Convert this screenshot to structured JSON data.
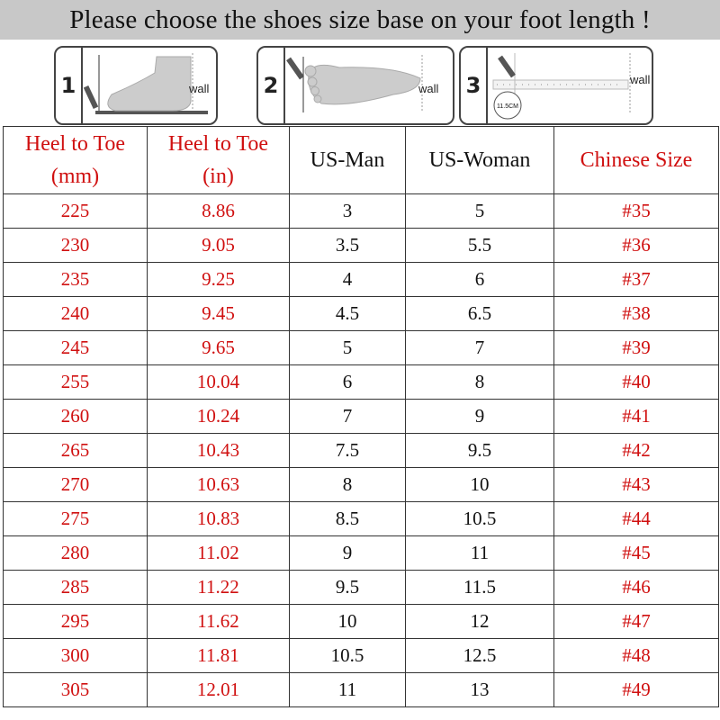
{
  "title": "Please choose the shoes size base on your foot length !",
  "steps": [
    {
      "number": "1",
      "label": "wall"
    },
    {
      "number": "2",
      "label": "wall"
    },
    {
      "number": "3",
      "label": "wall",
      "badge": "11.5CM"
    }
  ],
  "colors": {
    "red_text": "#d01010",
    "title_bar": "#c8c8c8"
  },
  "table": {
    "headers": [
      {
        "line1": "Heel to Toe",
        "line2": "(mm)"
      },
      {
        "line1": "Heel to Toe",
        "line2": "(in)"
      },
      {
        "line1": "US-Man",
        "line2": ""
      },
      {
        "line1": "US-Woman",
        "line2": ""
      },
      {
        "line1": "Chinese Size",
        "line2": ""
      }
    ],
    "rows": [
      [
        "225",
        "8.86",
        "3",
        "5",
        "#35"
      ],
      [
        "230",
        "9.05",
        "3.5",
        "5.5",
        "#36"
      ],
      [
        "235",
        "9.25",
        "4",
        "6",
        "#37"
      ],
      [
        "240",
        "9.45",
        "4.5",
        "6.5",
        "#38"
      ],
      [
        "245",
        "9.65",
        "5",
        "7",
        "#39"
      ],
      [
        "255",
        "10.04",
        "6",
        "8",
        "#40"
      ],
      [
        "260",
        "10.24",
        "7",
        "9",
        "#41"
      ],
      [
        "265",
        "10.43",
        "7.5",
        "9.5",
        "#42"
      ],
      [
        "270",
        "10.63",
        "8",
        "10",
        "#43"
      ],
      [
        "275",
        "10.83",
        "8.5",
        "10.5",
        "#44"
      ],
      [
        "280",
        "11.02",
        "9",
        "11",
        "#45"
      ],
      [
        "285",
        "11.22",
        "9.5",
        "11.5",
        "#46"
      ],
      [
        "295",
        "11.62",
        "10",
        "12",
        "#47"
      ],
      [
        "300",
        "11.81",
        "10.5",
        "12.5",
        "#48"
      ],
      [
        "305",
        "12.01",
        "11",
        "13",
        "#49"
      ]
    ]
  }
}
